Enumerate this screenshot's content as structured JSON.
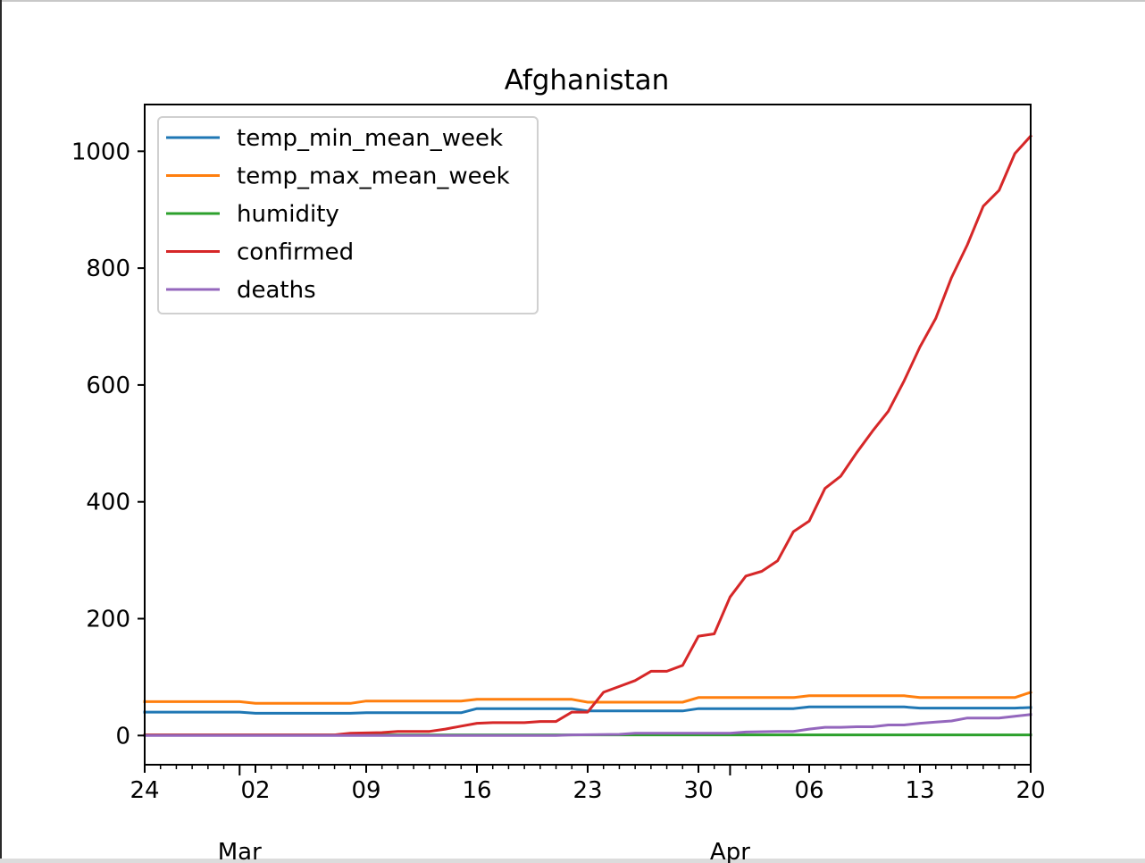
{
  "chart_data": {
    "type": "line",
    "title": "Afghanistan",
    "xlabel": "",
    "ylabel": "",
    "x_start": "2020-02-24",
    "x_end": "2020-04-20",
    "x_ticks": [
      {
        "label": "24",
        "date": "2020-02-24"
      },
      {
        "label": "02",
        "date": "2020-03-02"
      },
      {
        "label": "09",
        "date": "2020-03-09"
      },
      {
        "label": "16",
        "date": "2020-03-16"
      },
      {
        "label": "23",
        "date": "2020-03-23"
      },
      {
        "label": "30",
        "date": "2020-03-30"
      },
      {
        "label": "06",
        "date": "2020-04-06"
      },
      {
        "label": "13",
        "date": "2020-04-13"
      },
      {
        "label": "20",
        "date": "2020-04-20"
      }
    ],
    "month_labels": [
      {
        "label": "Mar",
        "date": "2020-03-01"
      },
      {
        "label": "Apr",
        "date": "2020-04-01"
      }
    ],
    "y_ticks": [
      0,
      200,
      400,
      600,
      800,
      1000
    ],
    "ylim": [
      -50,
      1080
    ],
    "grid": false,
    "legend_position": "top-left",
    "series": [
      {
        "name": "temp_min_mean_week",
        "color": "#1f77b4",
        "points": [
          [
            "2020-02-24",
            40
          ],
          [
            "2020-03-01",
            40
          ],
          [
            "2020-03-02",
            38
          ],
          [
            "2020-03-08",
            38
          ],
          [
            "2020-03-09",
            39
          ],
          [
            "2020-03-15",
            39
          ],
          [
            "2020-03-16",
            46
          ],
          [
            "2020-03-22",
            46
          ],
          [
            "2020-03-23",
            42
          ],
          [
            "2020-03-29",
            42
          ],
          [
            "2020-03-30",
            46
          ],
          [
            "2020-04-05",
            46
          ],
          [
            "2020-04-06",
            49
          ],
          [
            "2020-04-12",
            49
          ],
          [
            "2020-04-13",
            47
          ],
          [
            "2020-04-19",
            47
          ],
          [
            "2020-04-20",
            48
          ]
        ]
      },
      {
        "name": "temp_max_mean_week",
        "color": "#ff7f0e",
        "points": [
          [
            "2020-02-24",
            58
          ],
          [
            "2020-03-01",
            58
          ],
          [
            "2020-03-02",
            55
          ],
          [
            "2020-03-08",
            55
          ],
          [
            "2020-03-09",
            59
          ],
          [
            "2020-03-15",
            59
          ],
          [
            "2020-03-16",
            62
          ],
          [
            "2020-03-22",
            62
          ],
          [
            "2020-03-23",
            57
          ],
          [
            "2020-03-29",
            57
          ],
          [
            "2020-03-30",
            65
          ],
          [
            "2020-04-05",
            65
          ],
          [
            "2020-04-06",
            68
          ],
          [
            "2020-04-12",
            68
          ],
          [
            "2020-04-13",
            65
          ],
          [
            "2020-04-19",
            65
          ],
          [
            "2020-04-20",
            74
          ]
        ]
      },
      {
        "name": "humidity",
        "color": "#2ca02c",
        "points": [
          [
            "2020-02-24",
            1
          ],
          [
            "2020-04-20",
            1
          ]
        ]
      },
      {
        "name": "confirmed",
        "color": "#d62728",
        "points": [
          [
            "2020-02-24",
            1
          ],
          [
            "2020-03-07",
            1
          ],
          [
            "2020-03-08",
            4
          ],
          [
            "2020-03-10",
            5
          ],
          [
            "2020-03-11",
            7
          ],
          [
            "2020-03-13",
            7
          ],
          [
            "2020-03-14",
            11
          ],
          [
            "2020-03-15",
            16
          ],
          [
            "2020-03-16",
            21
          ],
          [
            "2020-03-17",
            22
          ],
          [
            "2020-03-19",
            22
          ],
          [
            "2020-03-20",
            24
          ],
          [
            "2020-03-21",
            24
          ],
          [
            "2020-03-22",
            40
          ],
          [
            "2020-03-23",
            40
          ],
          [
            "2020-03-24",
            74
          ],
          [
            "2020-03-25",
            84
          ],
          [
            "2020-03-26",
            94
          ],
          [
            "2020-03-27",
            110
          ],
          [
            "2020-03-28",
            110
          ],
          [
            "2020-03-29",
            120
          ],
          [
            "2020-03-30",
            170
          ],
          [
            "2020-03-31",
            174
          ],
          [
            "2020-04-01",
            237
          ],
          [
            "2020-04-02",
            273
          ],
          [
            "2020-04-03",
            281
          ],
          [
            "2020-04-04",
            299
          ],
          [
            "2020-04-05",
            349
          ],
          [
            "2020-04-06",
            367
          ],
          [
            "2020-04-07",
            423
          ],
          [
            "2020-04-08",
            444
          ],
          [
            "2020-04-09",
            484
          ],
          [
            "2020-04-10",
            521
          ],
          [
            "2020-04-11",
            555
          ],
          [
            "2020-04-12",
            607
          ],
          [
            "2020-04-13",
            665
          ],
          [
            "2020-04-14",
            714
          ],
          [
            "2020-04-15",
            784
          ],
          [
            "2020-04-16",
            840
          ],
          [
            "2020-04-17",
            906
          ],
          [
            "2020-04-18",
            933
          ],
          [
            "2020-04-19",
            996
          ],
          [
            "2020-04-20",
            1026
          ]
        ]
      },
      {
        "name": "deaths",
        "color": "#9467bd",
        "points": [
          [
            "2020-02-24",
            0
          ],
          [
            "2020-03-21",
            0
          ],
          [
            "2020-03-22",
            1
          ],
          [
            "2020-03-25",
            2
          ],
          [
            "2020-03-26",
            4
          ],
          [
            "2020-03-31",
            4
          ],
          [
            "2020-04-01",
            4
          ],
          [
            "2020-04-02",
            6
          ],
          [
            "2020-04-04",
            7
          ],
          [
            "2020-04-05",
            7
          ],
          [
            "2020-04-06",
            11
          ],
          [
            "2020-04-07",
            14
          ],
          [
            "2020-04-08",
            14
          ],
          [
            "2020-04-09",
            15
          ],
          [
            "2020-04-10",
            15
          ],
          [
            "2020-04-11",
            18
          ],
          [
            "2020-04-12",
            18
          ],
          [
            "2020-04-13",
            21
          ],
          [
            "2020-04-14",
            23
          ],
          [
            "2020-04-15",
            25
          ],
          [
            "2020-04-16",
            30
          ],
          [
            "2020-04-18",
            30
          ],
          [
            "2020-04-19",
            33
          ],
          [
            "2020-04-20",
            36
          ]
        ]
      }
    ]
  }
}
